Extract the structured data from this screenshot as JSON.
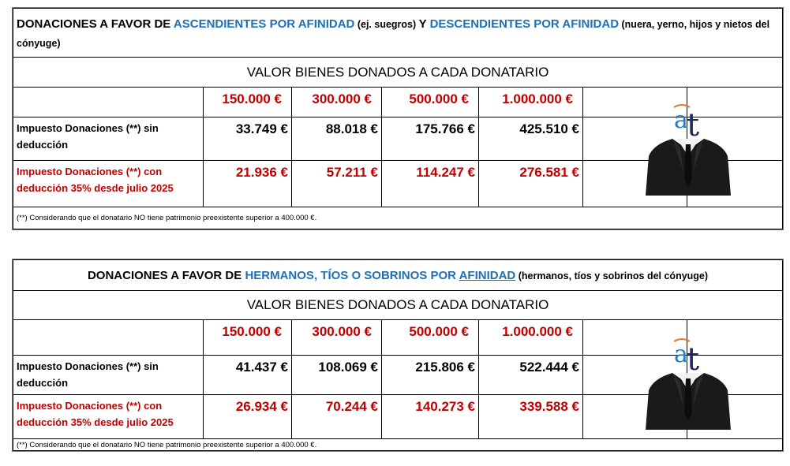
{
  "tables": [
    {
      "title": [
        "DONACIONES A FAVOR DE ",
        "ASCENDIENTES POR AFINIDAD",
        " (ej. suegros) ",
        "Y ",
        "DESCENDIENTES POR AFINIDAD",
        " (nuera, yerno, hijos y nietos del cónyuge)"
      ],
      "header": "VALOR BIENES DONADOS A CADA DONATARIO",
      "amounts": [
        "150.000 €",
        "300.000 €",
        "500.000 €",
        "1.000.000 €"
      ],
      "rows": [
        {
          "label": "Impuesto Donaciones (**) sin deducción",
          "values": [
            "33.749 €",
            "88.018 €",
            "175.766 €",
            "425.510 €"
          ]
        },
        {
          "label": "Impuesto Donaciones (**) con deducción 35% desde julio 2025",
          "values": [
            "21.936 €",
            "57.211 €",
            "114.247 €",
            "276.581 €"
          ]
        }
      ],
      "footnote": "(**) Considerando que el donatario NO tiene patrimonio preexistente superior a 400.000 €."
    },
    {
      "title": [
        "DONACIONES A FAVOR DE ",
        "HERMANOS, TÍOS O SOBRINOS POR ",
        "AFINIDAD",
        " (hermanos, tíos y sobrinos del cónyuge)"
      ],
      "header": "VALOR BIENES DONADOS A CADA DONATARIO",
      "amounts": [
        "150.000 €",
        "300.000 €",
        "500.000 €",
        "1.000.000 €"
      ],
      "rows": [
        {
          "label": "Impuesto Donaciones (**) sin deducción",
          "values": [
            "41.437 €",
            "108.069 €",
            "215.806 €",
            "522.444 €"
          ]
        },
        {
          "label": "Impuesto Donaciones (**) con deducción 35% desde julio 2025",
          "values": [
            "26.934 €",
            "70.244 €",
            "140.273 €",
            "339.588 €"
          ]
        }
      ],
      "footnote": "(**) Considerando que el donatario NO tiene patrimonio preexistente superior a 400.000 €."
    }
  ]
}
